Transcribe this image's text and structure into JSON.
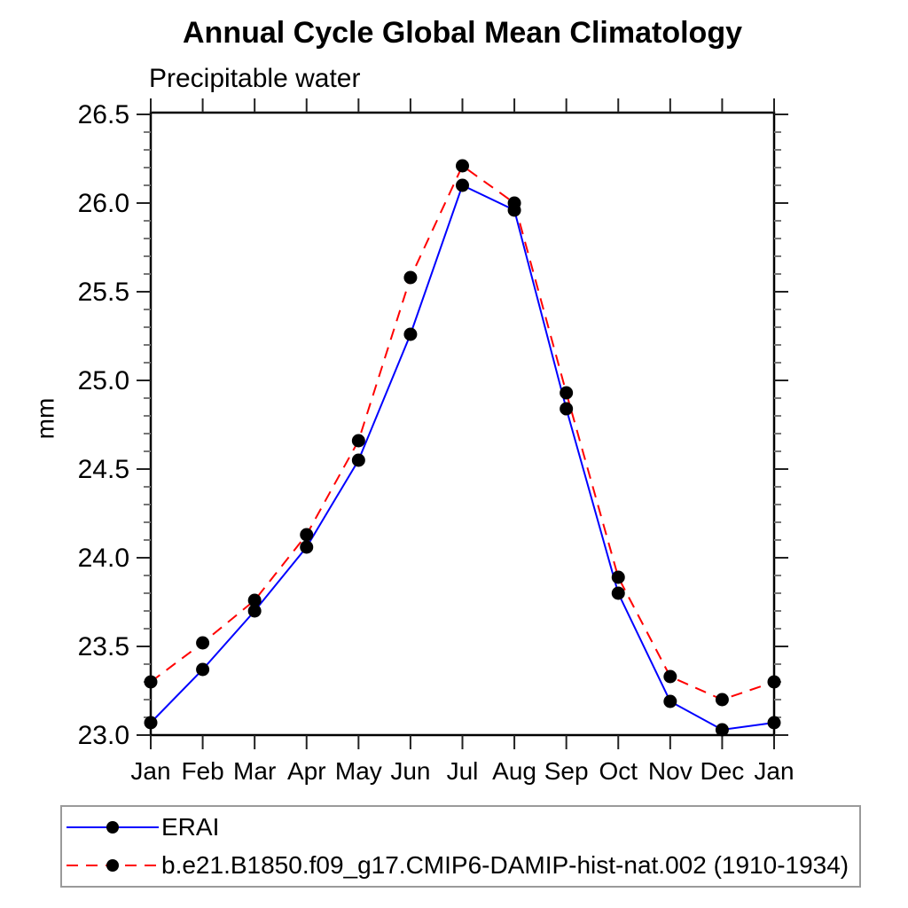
{
  "chart_data": {
    "type": "line",
    "title": "Annual Cycle Global Mean Climatology",
    "subtitle": "Precipitable water",
    "ylabel": "mm",
    "xlabel": "",
    "categories": [
      "Jan",
      "Feb",
      "Mar",
      "Apr",
      "May",
      "Jun",
      "Jul",
      "Aug",
      "Sep",
      "Oct",
      "Nov",
      "Dec",
      "Jan"
    ],
    "series": [
      {
        "name": "ERAI",
        "color": "#0000ff",
        "line_style": "solid",
        "marker": "circle",
        "marker_color": "#000000",
        "values": [
          23.07,
          23.37,
          23.7,
          24.06,
          24.55,
          25.26,
          26.1,
          25.96,
          24.84,
          23.8,
          23.19,
          23.03,
          23.07
        ]
      },
      {
        "name": "b.e21.B1850.f09_g17.CMIP6-DAMIP-hist-nat.002 (1910-1934)",
        "color": "#ff0000",
        "line_style": "dashed",
        "marker": "circle",
        "marker_color": "#000000",
        "values": [
          23.3,
          23.52,
          23.76,
          24.13,
          24.66,
          25.58,
          26.21,
          26.0,
          24.93,
          23.89,
          23.33,
          23.2,
          23.3
        ]
      }
    ],
    "ylim": [
      23.0,
      26.51
    ],
    "y_major_step": 0.5,
    "y_minor_step": 0.1,
    "y_tick_labels": [
      "23.0",
      "23.5",
      "24.0",
      "24.5",
      "25.0",
      "25.5",
      "26.0",
      "26.5"
    ],
    "grid": false,
    "tick_direction": "out",
    "legend_position": "bottom",
    "axis_color": "#000000"
  }
}
